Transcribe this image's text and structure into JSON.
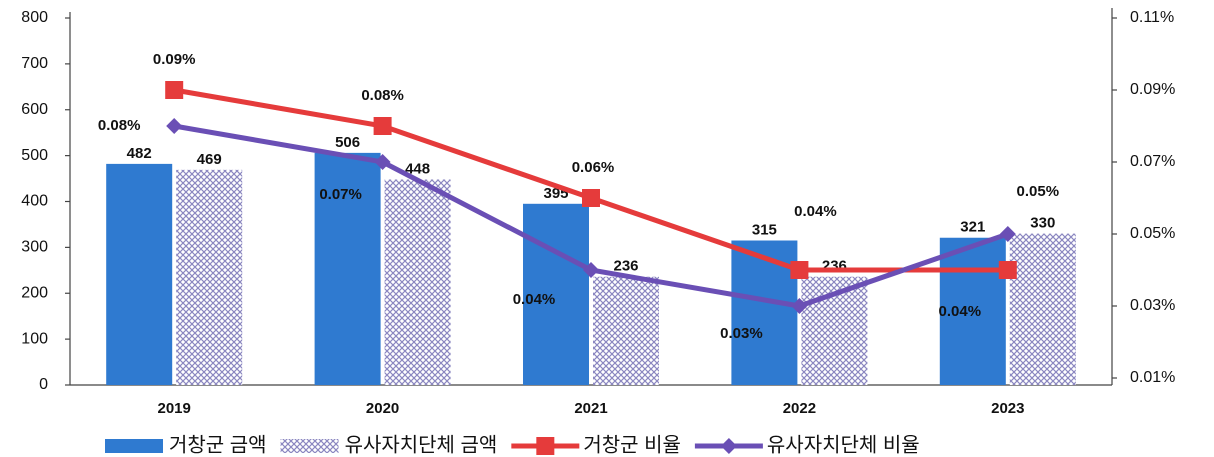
{
  "chart_data": {
    "type": "bar",
    "categories": [
      "2019",
      "2020",
      "2021",
      "2022",
      "2023"
    ],
    "ylim": [
      0,
      800
    ],
    "yticks": [
      0,
      100,
      200,
      300,
      400,
      500,
      600,
      700,
      800
    ],
    "y2lim": [
      0.01,
      0.11
    ],
    "y2ticks": [
      {
        "value": 0.01,
        "label": "0.01%"
      },
      {
        "value": 0.03,
        "label": "0.03%"
      },
      {
        "value": 0.05,
        "label": "0.05%"
      },
      {
        "value": 0.07,
        "label": "0.07%"
      },
      {
        "value": 0.09,
        "label": "0.09%"
      },
      {
        "value": 0.11,
        "label": "0.11%"
      }
    ],
    "grid": false,
    "legend": "bottom",
    "series": [
      {
        "name": "거창군 금액",
        "type": "bar",
        "color": "#2f7ad0",
        "values": [
          482,
          506,
          395,
          315,
          321
        ]
      },
      {
        "name": "유사자치단체 금액",
        "type": "bar",
        "pattern": "crosshatch",
        "color": "#9a96c8",
        "values": [
          469,
          448,
          236,
          236,
          330
        ]
      },
      {
        "name": "거창군 비율",
        "type": "line",
        "axis": "y2",
        "marker": "square",
        "color": "#e53b3b",
        "values": [
          0.09,
          0.08,
          0.06,
          0.04,
          0.04
        ],
        "value_labels": [
          "0.09%",
          "0.08%",
          "0.06%",
          "0.04%",
          "0.04%"
        ]
      },
      {
        "name": "유사자치단체 비율",
        "type": "line",
        "axis": "y2",
        "marker": "diamond",
        "color": "#6a4fb5",
        "values": [
          0.08,
          0.07,
          0.04,
          0.03,
          0.05
        ],
        "value_labels": [
          "0.08%",
          "0.07%",
          "0.04%",
          "0.03%",
          "0.05%"
        ]
      }
    ]
  }
}
